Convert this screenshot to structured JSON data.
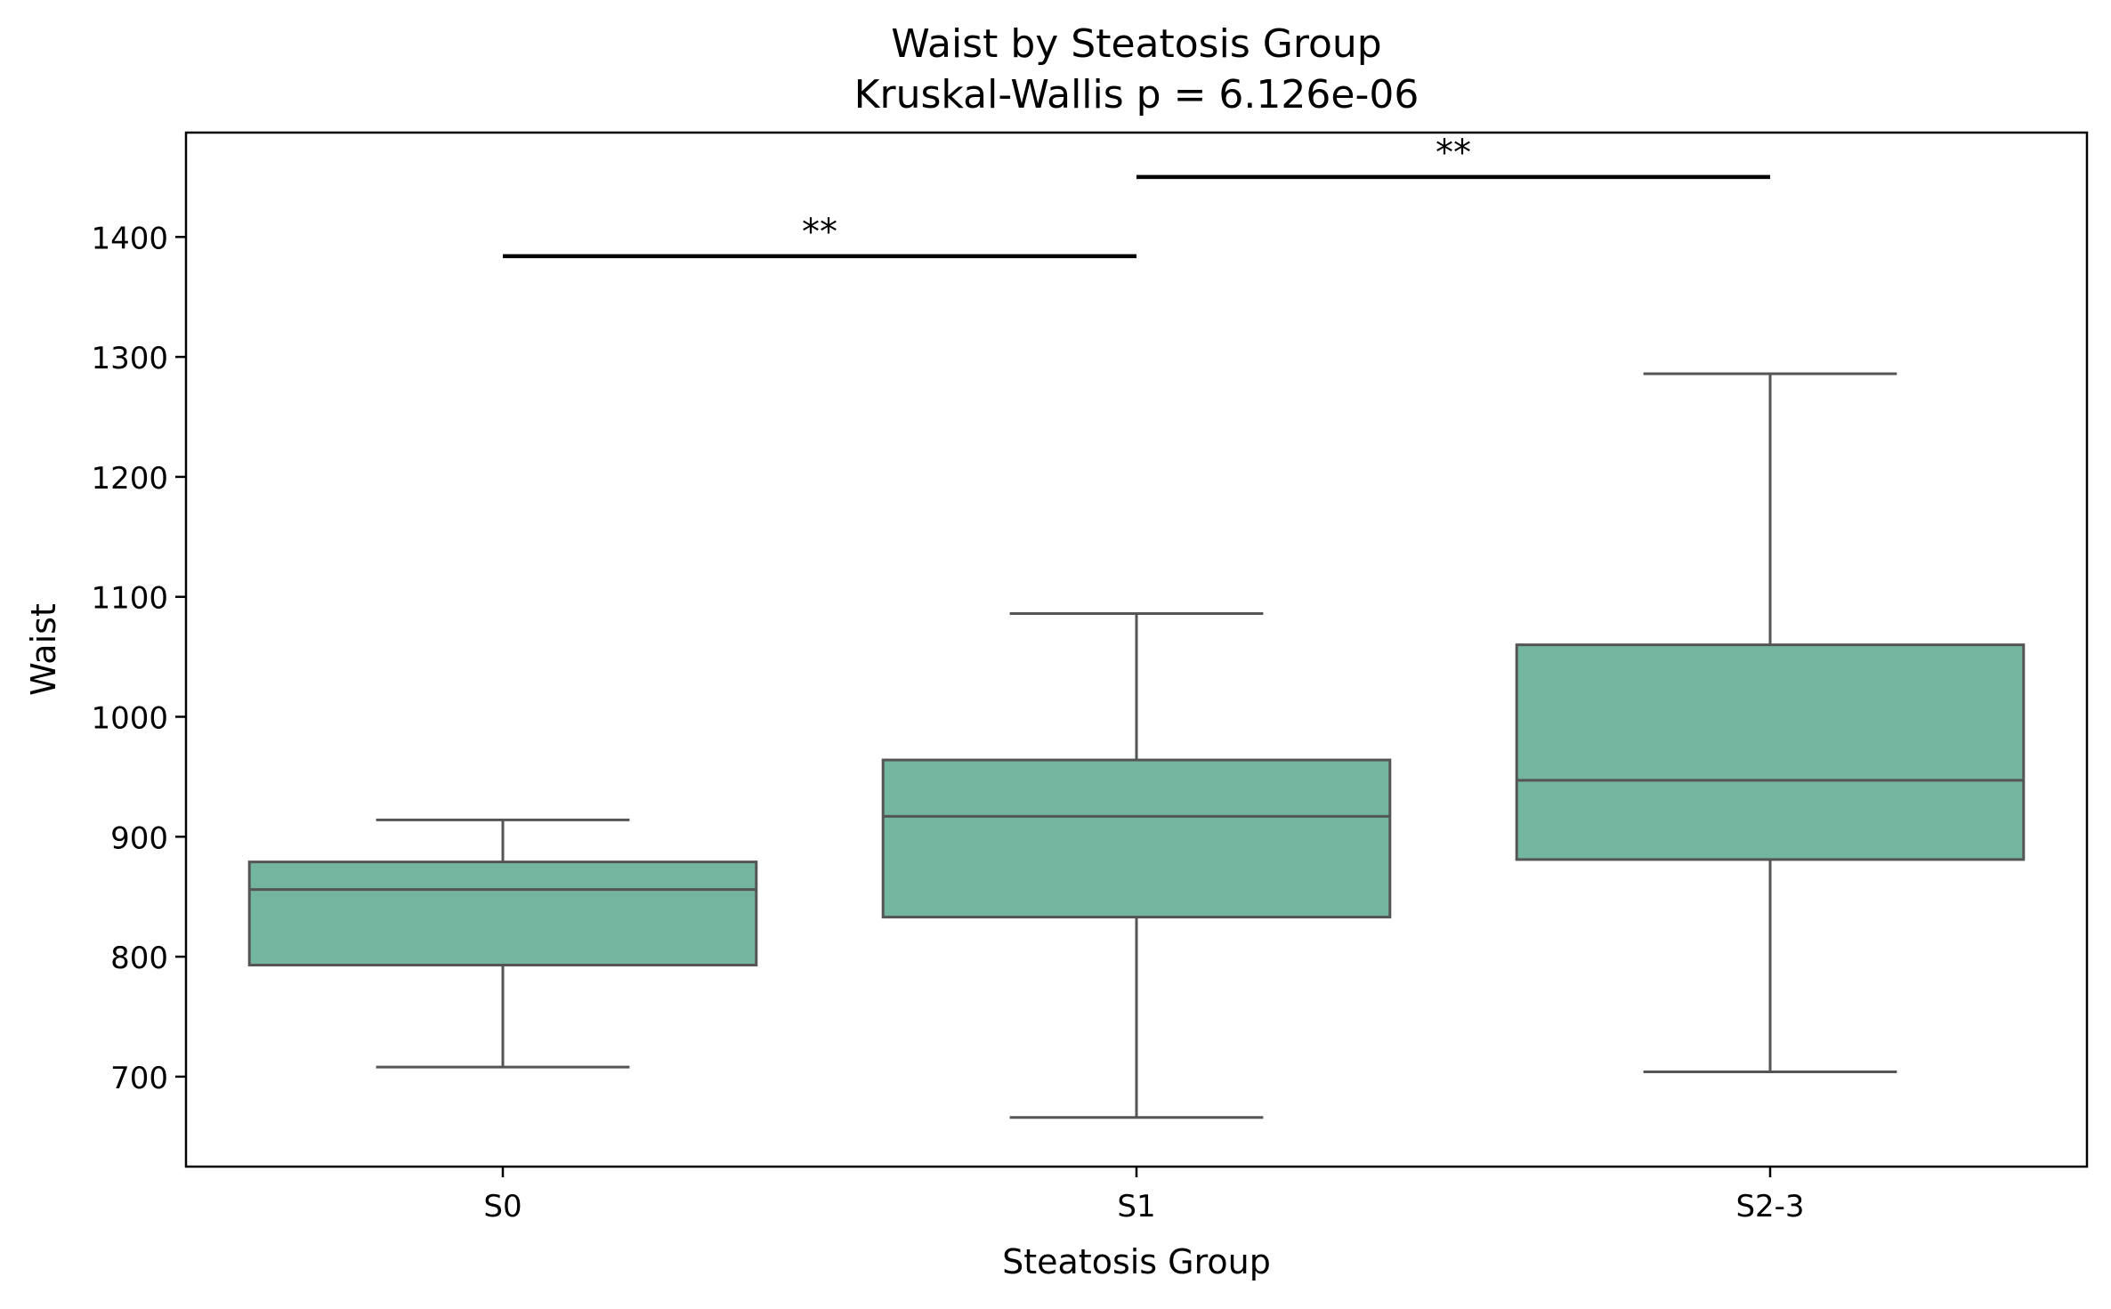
{
  "chart_data": {
    "type": "box",
    "title": "Waist by Steatosis Group",
    "subtitle": "Kruskal-Wallis p = 6.126e-06",
    "xlabel": "Steatosis Group",
    "ylabel": "Waist",
    "ylim": [
      625,
      1487
    ],
    "yticks": [
      700,
      800,
      900,
      1000,
      1100,
      1200,
      1300,
      1400
    ],
    "categories": [
      "S0",
      "S1",
      "S2-3"
    ],
    "boxes": [
      {
        "group": "S0",
        "whisker_low": 708,
        "q1": 793,
        "median": 856,
        "q3": 879,
        "whisker_high": 914
      },
      {
        "group": "S1",
        "whisker_low": 666,
        "q1": 833,
        "median": 917,
        "q3": 964,
        "whisker_high": 1086
      },
      {
        "group": "S2-3",
        "whisker_low": 704,
        "q1": 881,
        "median": 947,
        "q3": 1060,
        "whisker_high": 1286
      }
    ],
    "significance": [
      {
        "from": "S0",
        "to": "S1",
        "y": 1384,
        "label": "**"
      },
      {
        "from": "S1",
        "to": "S2-3",
        "y": 1450,
        "label": "**"
      }
    ],
    "box_color": "#74b59f",
    "line_color": "#555555",
    "grid": false,
    "legend": "none"
  }
}
